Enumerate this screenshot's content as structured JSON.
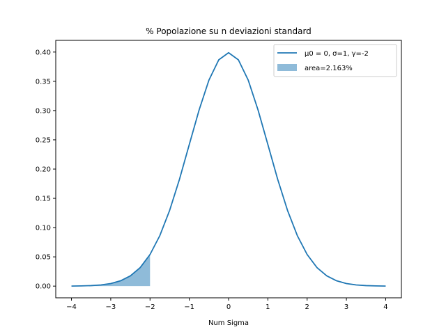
{
  "chart_data": {
    "type": "area",
    "title": "% Popolazione su n deviazioni standard",
    "xlabel": "Num Sigma",
    "ylabel": "",
    "xlim": [
      -4.4,
      4.4
    ],
    "ylim": [
      -0.02,
      0.42
    ],
    "xticks": [
      -4,
      -3,
      -2,
      -1,
      0,
      1,
      2,
      3,
      4
    ],
    "xtick_labels": [
      "−4",
      "−3",
      "−2",
      "−1",
      "0",
      "1",
      "2",
      "3",
      "4"
    ],
    "yticks": [
      0.0,
      0.05,
      0.1,
      0.15,
      0.2,
      0.25,
      0.3,
      0.35,
      0.4
    ],
    "ytick_labels": [
      "0.00",
      "0.05",
      "0.10",
      "0.15",
      "0.20",
      "0.25",
      "0.30",
      "0.35",
      "0.40"
    ],
    "grid": false,
    "legend_position": "top-right",
    "series": [
      {
        "name": "μ0 = 0, σ=1, γ=-2",
        "kind": "line",
        "color": "#1f77b4",
        "x": [
          -4.0,
          -3.75,
          -3.5,
          -3.25,
          -3.0,
          -2.75,
          -2.5,
          -2.25,
          -2.0,
          -1.75,
          -1.5,
          -1.25,
          -1.0,
          -0.75,
          -0.5,
          -0.25,
          0.0,
          0.25,
          0.5,
          0.75,
          1.0,
          1.25,
          1.5,
          1.75,
          2.0,
          2.25,
          2.5,
          2.75,
          3.0,
          3.25,
          3.5,
          3.75,
          4.0
        ],
        "y": [
          0.0001,
          0.0004,
          0.0009,
          0.002,
          0.0044,
          0.0091,
          0.0175,
          0.0317,
          0.054,
          0.0863,
          0.1295,
          0.1826,
          0.242,
          0.3011,
          0.3521,
          0.3867,
          0.3989,
          0.3867,
          0.3521,
          0.3011,
          0.242,
          0.1826,
          0.1295,
          0.0863,
          0.054,
          0.0317,
          0.0175,
          0.0091,
          0.0044,
          0.002,
          0.0009,
          0.0004,
          0.0001
        ]
      },
      {
        "name": "area=2.163%",
        "kind": "fill",
        "color": "#1f77b4",
        "opacity": 0.5,
        "x": [
          -4.0,
          -3.75,
          -3.5,
          -3.25,
          -3.0,
          -2.75,
          -2.5,
          -2.25,
          -2.0
        ],
        "y": [
          0.0001,
          0.0004,
          0.0009,
          0.002,
          0.0044,
          0.0091,
          0.0175,
          0.0317,
          0.054
        ]
      }
    ]
  }
}
